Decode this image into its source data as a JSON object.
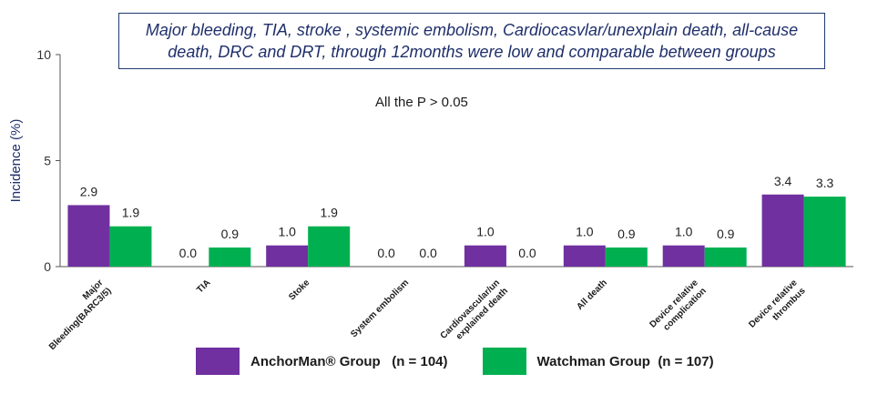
{
  "title": "Major bleeding, TIA, stroke , systemic embolism, Cardiocasvlar/unexplain death, all-cause death, DRC and DRT, through 12months were low and comparable between groups",
  "note": "All the P > 0.05",
  "legend": [
    {
      "label": "AnchorMan® Group",
      "count": "(n = 104)",
      "color": "#7030a0"
    },
    {
      "label": "Watchman Group",
      "count": "(n = 107)",
      "color": "#00b050"
    }
  ],
  "chart_data": {
    "type": "bar",
    "ylabel": "Incidence (%)",
    "ylim": [
      0,
      10
    ],
    "yticks": [
      0,
      5,
      10
    ],
    "categories": [
      [
        "Major",
        "Bleeding(BARC3/5)"
      ],
      [
        "TIA"
      ],
      [
        "Stoke"
      ],
      [
        "System embolism"
      ],
      [
        "Cardiovascular/un",
        "explained death"
      ],
      [
        "All death"
      ],
      [
        "Device relative",
        "complication"
      ],
      [
        "Device relative",
        "thrombus"
      ]
    ],
    "series": [
      {
        "name": "AnchorMan® Group",
        "color": "#7030a0",
        "values": [
          2.9,
          0.0,
          1.0,
          0.0,
          1.0,
          1.0,
          1.0,
          3.4
        ],
        "labels": [
          "2.9",
          "0.0",
          "1.0",
          "0.0",
          "1.0",
          "1.0",
          "1.0",
          "3.4"
        ]
      },
      {
        "name": "Watchman Group",
        "color": "#00b050",
        "values": [
          1.9,
          0.9,
          1.9,
          0.0,
          0.0,
          0.9,
          0.9,
          3.3
        ],
        "labels": [
          "1.9",
          "0.9",
          "1.9",
          "0.0",
          "0.0",
          "0.9",
          "0.9",
          "3.3"
        ]
      }
    ]
  }
}
